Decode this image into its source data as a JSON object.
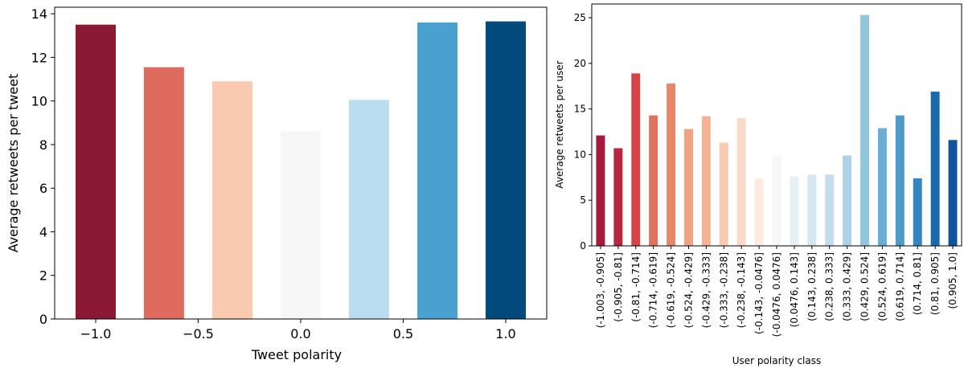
{
  "chart_data": [
    {
      "type": "bar",
      "xlabel": "Tweet polarity",
      "ylabel": "Average retweets per tweet",
      "x": [
        -1.0,
        -0.667,
        -0.333,
        0.0,
        0.333,
        0.667,
        1.0
      ],
      "values": [
        13.5,
        11.55,
        10.9,
        8.6,
        10.05,
        13.6,
        13.65
      ],
      "colors": [
        "#8b1834",
        "#de6b5e",
        "#f9c9b0",
        "#f7f7f7",
        "#b9ddee",
        "#4aa0cf",
        "#024a7c"
      ],
      "xlim": [
        -1.2,
        1.2
      ],
      "ylim": [
        0,
        14.3
      ],
      "xticks": [
        -1.0,
        -0.5,
        0.0,
        0.5,
        1.0
      ],
      "xtick_labels": [
        "−1.0",
        "−0.5",
        "0.0",
        "0.5",
        "1.0"
      ],
      "yticks": [
        0,
        2,
        4,
        6,
        8,
        10,
        12,
        14
      ],
      "grid": false
    },
    {
      "type": "bar",
      "xlabel": "User polarity class",
      "ylabel": "Average retweets per user",
      "categories": [
        "(-1.003, -0.905]",
        "(-0.905, -0.81]",
        "(-0.81, -0.714]",
        "(-0.714, -0.619]",
        "(-0.619, -0.524]",
        "(-0.524, -0.429]",
        "(-0.429, -0.333]",
        "(-0.333, -0.238]",
        "(-0.238, -0.143]",
        "(-0.143, -0.0476]",
        "(-0.0476, 0.0476]",
        "(0.0476, 0.143]",
        "(0.143, 0.238]",
        "(0.238, 0.333]",
        "(0.333, 0.429]",
        "(0.429, 0.524]",
        "(0.524, 0.619]",
        "(0.619, 0.714]",
        "(0.714, 0.81]",
        "(0.81, 0.905]",
        "(0.905, 1.0]"
      ],
      "values": [
        12.1,
        10.7,
        18.9,
        14.3,
        17.8,
        12.8,
        14.2,
        11.3,
        14.0,
        7.4,
        9.8,
        7.6,
        7.8,
        7.8,
        9.9,
        25.3,
        12.9,
        14.3,
        7.4,
        16.9,
        11.6
      ],
      "colors": [
        "#a7193a",
        "#b9263f",
        "#d44347",
        "#e0735e",
        "#e8866a",
        "#f2a183",
        "#f5b295",
        "#f9c9b0",
        "#fadac8",
        "#fdeae0",
        "#f7f7f7",
        "#e6f0f5",
        "#d5e7f1",
        "#c4ddec",
        "#aed2e5",
        "#92c5de",
        "#6aadd5",
        "#4d9ac7",
        "#3584bd",
        "#1a6aab",
        "#0d569c"
      ],
      "ylim": [
        0,
        26.5
      ],
      "yticks": [
        0,
        5,
        10,
        15,
        20,
        25
      ],
      "grid": false
    }
  ]
}
